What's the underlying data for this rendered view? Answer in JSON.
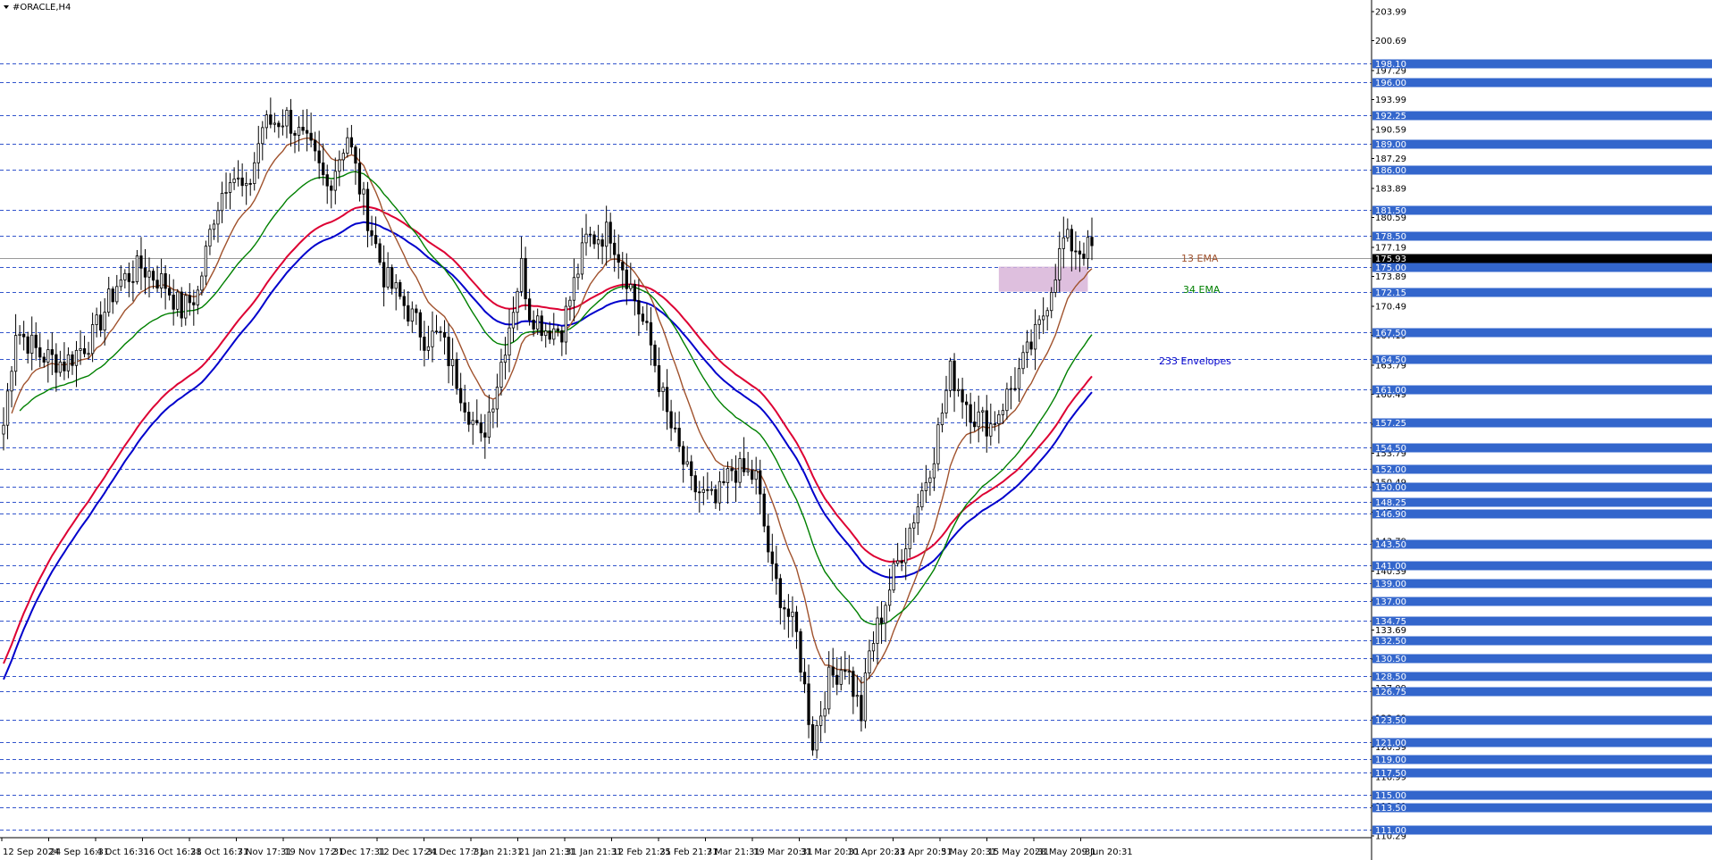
{
  "window": {
    "title": "#ORACLE,H4",
    "menu_icon": "triangle-down-icon"
  },
  "chart_data": {
    "type": "candlestick",
    "symbol": "#ORACLE",
    "timeframe": "H4",
    "ylim": [
      110.0,
      205.5
    ],
    "x_tick_labels": [
      "12 Sep 2024",
      "24 Sep 16:31",
      "4 Oct 16:31",
      "16 Oct 16:31",
      "28 Oct 16:31",
      "7 Nov 17:31",
      "19 Nov 17:31",
      "2 Dec 17:31",
      "12 Dec 17:31",
      "24 Dec 17:31",
      "7 Jan 21:31",
      "21 Jan 21:31",
      "31 Jan 21:31",
      "12 Feb 21:31",
      "25 Feb 21:31",
      "7 Mar 21:31",
      "19 Mar 20:31",
      "31 Mar 20:31",
      "10 Apr 20:31",
      "23 Apr 20:31",
      "5 May 20:31",
      "15 May 20:31",
      "28 May 20:31",
      "9 Jun 20:31"
    ],
    "y_tick_labels": [
      "203.99",
      "200.69",
      "197.29",
      "193.99",
      "190.59",
      "187.29",
      "183.89",
      "180.59",
      "177.19",
      "173.89",
      "170.49",
      "167.19",
      "163.79",
      "160.49",
      "157.09",
      "153.79",
      "150.49",
      "147.09",
      "143.79",
      "140.39",
      "137.09",
      "133.69",
      "130.39",
      "127.09",
      "123.69",
      "120.39",
      "116.99",
      "113.69",
      "110.29"
    ],
    "horizontal_levels": [
      "198.10",
      "196.00",
      "192.25",
      "189.00",
      "186.00",
      "181.50",
      "178.50",
      "175.00",
      "172.15",
      "167.50",
      "164.50",
      "161.00",
      "157.25",
      "154.50",
      "152.00",
      "150.00",
      "148.25",
      "146.90",
      "143.50",
      "141.00",
      "139.00",
      "137.00",
      "134.75",
      "132.50",
      "130.50",
      "128.50",
      "126.75",
      "123.50",
      "121.00",
      "119.00",
      "117.50",
      "115.00",
      "113.50",
      "111.00"
    ],
    "current_price": "175.93",
    "zone": {
      "from_price": 172.15,
      "to_price": 175.0,
      "start_index": 246,
      "end_index": 268,
      "color": "#d8b4d8"
    },
    "indicators": [
      {
        "name": "13 EMA",
        "color": "#a0522d"
      },
      {
        "name": "34 EMA",
        "color": "#008000"
      },
      {
        "name": "233 Envelopes",
        "color": "#0000cc",
        "upper_color": "#dd0033"
      }
    ],
    "colors": {
      "level_line": "#3355cc",
      "level_label_bg": "#3366cc",
      "candle": "#000000",
      "background": "#ffffff"
    },
    "anchors": [
      [
        0,
        157
      ],
      [
        3,
        168
      ],
      [
        9,
        165
      ],
      [
        15,
        164
      ],
      [
        22,
        167
      ],
      [
        28,
        173
      ],
      [
        34,
        175
      ],
      [
        40,
        173
      ],
      [
        44,
        170
      ],
      [
        48,
        172
      ],
      [
        52,
        181
      ],
      [
        56,
        186
      ],
      [
        60,
        183
      ],
      [
        64,
        191
      ],
      [
        70,
        192
      ],
      [
        76,
        188
      ],
      [
        80,
        184
      ],
      [
        85,
        190
      ],
      [
        88,
        184
      ],
      [
        94,
        174
      ],
      [
        100,
        170
      ],
      [
        104,
        167
      ],
      [
        108,
        167
      ],
      [
        113,
        161
      ],
      [
        118,
        155
      ],
      [
        122,
        162
      ],
      [
        128,
        175
      ],
      [
        130,
        170
      ],
      [
        134,
        168
      ],
      [
        138,
        168
      ],
      [
        144,
        178
      ],
      [
        150,
        179
      ],
      [
        154,
        174
      ],
      [
        160,
        166
      ],
      [
        164,
        158
      ],
      [
        170,
        150
      ],
      [
        176,
        148
      ],
      [
        180,
        152
      ],
      [
        186,
        151
      ],
      [
        190,
        140
      ],
      [
        196,
        133
      ],
      [
        200,
        121
      ],
      [
        204,
        128
      ],
      [
        208,
        130
      ],
      [
        212,
        124
      ],
      [
        214,
        131
      ],
      [
        220,
        140
      ],
      [
        226,
        148
      ],
      [
        230,
        154
      ],
      [
        234,
        163
      ],
      [
        240,
        158
      ],
      [
        244,
        157
      ],
      [
        250,
        162
      ],
      [
        256,
        168
      ],
      [
        262,
        178
      ],
      [
        266,
        177
      ]
    ]
  }
}
